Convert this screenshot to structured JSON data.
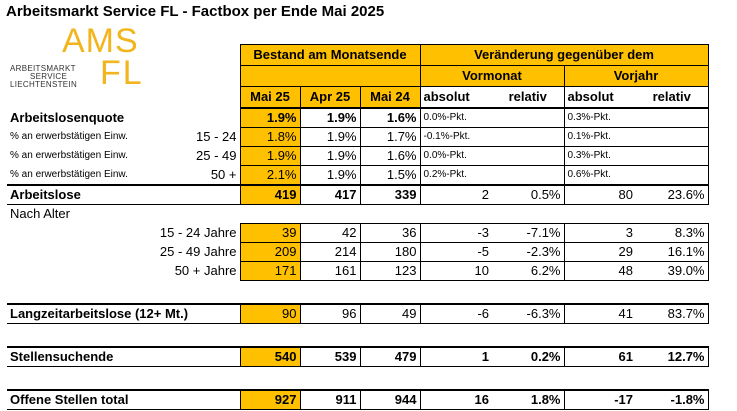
{
  "title": "Arbeitsmarkt Service FL - Factbox per Ende Mai 2025",
  "logo": {
    "ams": "AMS",
    "fl": "FL",
    "line1": "ARBEITSMARKT",
    "line2": "SERVICE",
    "line3": "LIECHTENSTEIN"
  },
  "header": {
    "bestand": "Bestand am Monatsende",
    "veraenderung": "Veränderung gegenüber dem",
    "vormonat": "Vormonat",
    "vorjahr": "Vorjahr",
    "cols": [
      "Mai 25",
      "Apr 25",
      "Mai 24",
      "absolut",
      "relativ",
      "absolut",
      "relativ"
    ]
  },
  "quote": {
    "label": "Arbeitslosenquote",
    "values": [
      "1.9%",
      "1.9%",
      "1.6%",
      "0.0%-Pkt.",
      "",
      "0.3%-Pkt.",
      ""
    ],
    "rows": [
      {
        "label": "% an erwerbstätigen Einw.",
        "range": "15 - 24",
        "values": [
          "1.8%",
          "1.9%",
          "1.7%",
          "-0.1%-Pkt.",
          "",
          "0.1%-Pkt.",
          ""
        ]
      },
      {
        "label": "% an erwerbstätigen Einw.",
        "range": "25 - 49",
        "values": [
          "1.9%",
          "1.9%",
          "1.6%",
          "0.0%-Pkt.",
          "",
          "0.3%-Pkt.",
          ""
        ]
      },
      {
        "label": "% an erwerbstätigen Einw.",
        "range": "50 +",
        "values": [
          "2.1%",
          "1.9%",
          "1.5%",
          "0.2%-Pkt.",
          "",
          "0.6%-Pkt.",
          ""
        ]
      }
    ]
  },
  "arbeitslose": {
    "label": "Arbeitslose",
    "values": [
      "419",
      "417",
      "339",
      "2",
      "0.5%",
      "80",
      "23.6%"
    ]
  },
  "nach_alter": {
    "label": "Nach Alter",
    "rows": [
      {
        "label": "15 - 24 Jahre",
        "values": [
          "39",
          "42",
          "36",
          "-3",
          "-7.1%",
          "3",
          "8.3%"
        ]
      },
      {
        "label": "25 - 49 Jahre",
        "values": [
          "209",
          "214",
          "180",
          "-5",
          "-2.3%",
          "29",
          "16.1%"
        ]
      },
      {
        "label": "50 + Jahre",
        "values": [
          "171",
          "161",
          "123",
          "10",
          "6.2%",
          "48",
          "39.0%"
        ]
      }
    ]
  },
  "langzeit": {
    "label": "Langzeitarbeitslose (12+ Mt.)",
    "values": [
      "90",
      "96",
      "49",
      "-6",
      "-6.3%",
      "41",
      "83.7%"
    ]
  },
  "stellensuchende": {
    "label": "Stellensuchende",
    "values": [
      "540",
      "539",
      "479",
      "1",
      "0.2%",
      "61",
      "12.7%"
    ]
  },
  "offene": {
    "label": "Offene Stellen total",
    "values": [
      "927",
      "911",
      "944",
      "16",
      "1.8%",
      "-17",
      "-1.8%"
    ]
  },
  "colors": {
    "accent": "#FFC000",
    "logo": "#F2B51D"
  }
}
